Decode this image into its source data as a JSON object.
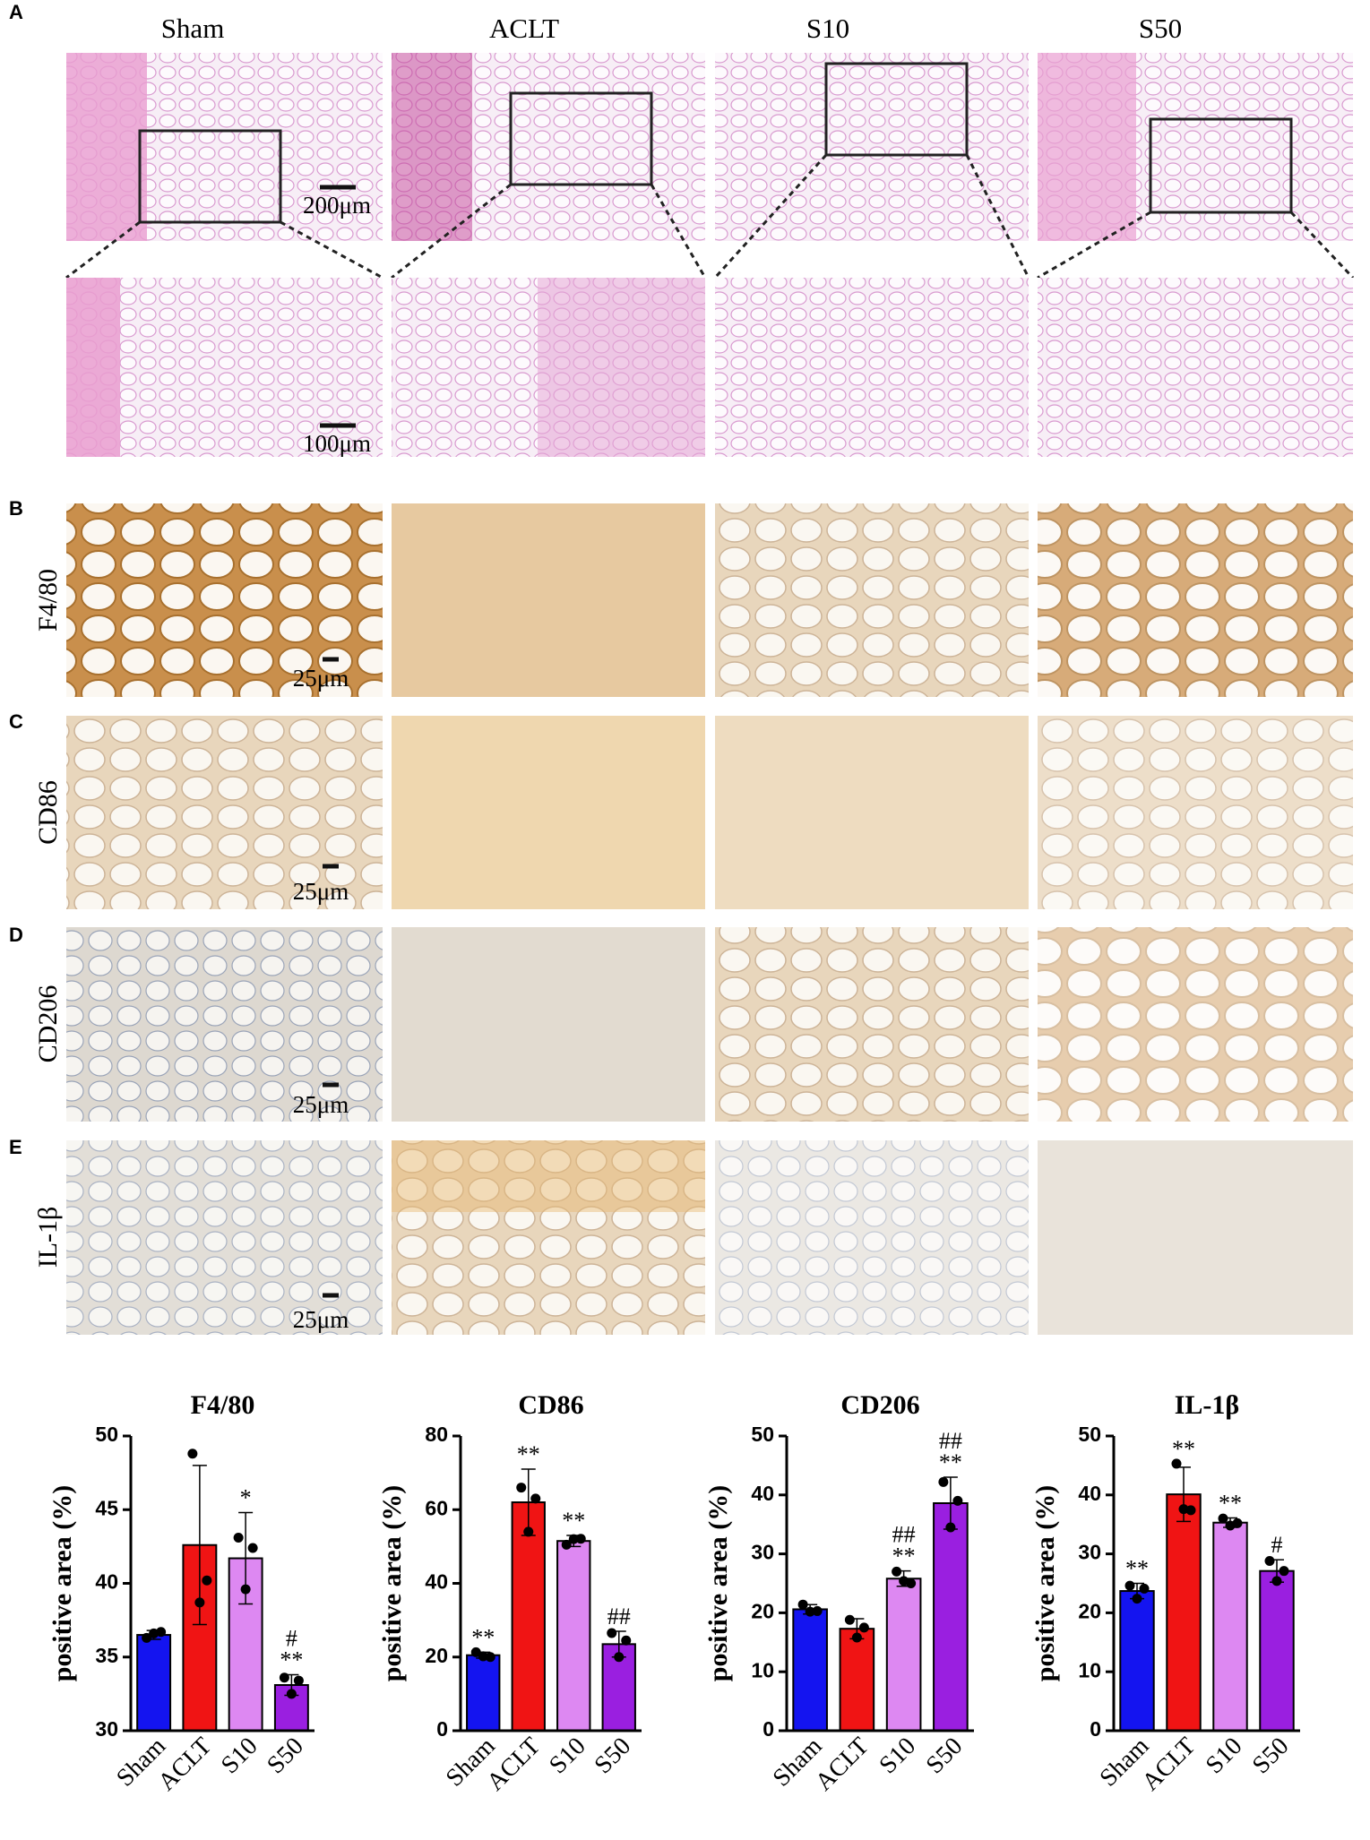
{
  "panel_labels": [
    "A",
    "B",
    "C",
    "D",
    "E"
  ],
  "groups": [
    "Sham",
    "ACLT",
    "S10",
    "S50"
  ],
  "row_labels": [
    "F4/80",
    "CD86",
    "CD206",
    "IL-1β"
  ],
  "scale_bars": [
    "200μm",
    "100μm",
    "25μm",
    "25μm",
    "25μm",
    "25μm"
  ],
  "chart_data": [
    {
      "type": "bar",
      "title": "F4/80",
      "y_label": "positive area (%)",
      "categories": [
        "Sham",
        "ACLT",
        "S10",
        "S50"
      ],
      "colors": [
        "#1414f0",
        "#f01414",
        "#dd88f2",
        "#9a1fe0"
      ],
      "values": [
        36.5,
        42.6,
        41.7,
        33.1
      ],
      "errors": [
        0.3,
        5.4,
        3.1,
        0.7
      ],
      "points": [
        [
          36.3,
          36.6,
          36.7
        ],
        [
          48.8,
          38.7,
          40.2
        ],
        [
          43.1,
          39.6,
          42.4
        ],
        [
          33.6,
          32.5,
          33.4
        ]
      ],
      "annotations": [
        [],
        [],
        [
          "*"
        ],
        [
          "#",
          "**"
        ]
      ],
      "ylim": [
        30,
        50
      ],
      "yticks": [
        30,
        35,
        40,
        45,
        50
      ]
    },
    {
      "type": "bar",
      "title": "CD86",
      "y_label": "positive area (%)",
      "categories": [
        "Sham",
        "ACLT",
        "S10",
        "S50"
      ],
      "colors": [
        "#1414f0",
        "#f01414",
        "#dd88f2",
        "#9a1fe0"
      ],
      "values": [
        20.5,
        62,
        51.5,
        23.5
      ],
      "errors": [
        0.8,
        9,
        1.5,
        3.5
      ],
      "points": [
        [
          21.3,
          20.2,
          20.0
        ],
        [
          66,
          54,
          63
        ],
        [
          50.5,
          52.0,
          52.1
        ],
        [
          26.5,
          20.0,
          24.5
        ]
      ],
      "annotations": [
        [
          "**"
        ],
        [
          "**"
        ],
        [
          "**"
        ],
        [
          "##"
        ]
      ],
      "ylim": [
        0,
        80
      ],
      "yticks": [
        0,
        20,
        40,
        60,
        80
      ]
    },
    {
      "type": "bar",
      "title": "CD206",
      "y_label": "positive area (%)",
      "categories": [
        "Sham",
        "ACLT",
        "S10",
        "S50"
      ],
      "colors": [
        "#1414f0",
        "#f01414",
        "#dd88f2",
        "#9a1fe0"
      ],
      "values": [
        20.6,
        17.3,
        25.8,
        38.6
      ],
      "errors": [
        0.8,
        1.7,
        1.3,
        4.4
      ],
      "points": [
        [
          21.4,
          20.2,
          20.3
        ],
        [
          18.8,
          15.8,
          17.5
        ],
        [
          27.0,
          25.4,
          25.0
        ],
        [
          42.2,
          34.5,
          39.0
        ]
      ],
      "annotations": [
        [],
        [],
        [
          "##",
          "**"
        ],
        [
          "##",
          "**"
        ]
      ],
      "ylim": [
        0,
        50
      ],
      "yticks": [
        0,
        10,
        20,
        30,
        40,
        50
      ]
    },
    {
      "type": "bar",
      "title": "IL-1β",
      "y_label": "positive area (%)",
      "categories": [
        "Sham",
        "ACLT",
        "S10",
        "S50"
      ],
      "colors": [
        "#1414f0",
        "#f01414",
        "#dd88f2",
        "#9a1fe0"
      ],
      "values": [
        23.7,
        40.1,
        35.3,
        27.1
      ],
      "errors": [
        1.3,
        4.6,
        0.8,
        1.9
      ],
      "points": [
        [
          24.6,
          22.4,
          24.1
        ],
        [
          45.3,
          37.6,
          37.4
        ],
        [
          36.0,
          34.8,
          35.2
        ],
        [
          28.8,
          25.4,
          27.1
        ]
      ],
      "annotations": [
        [
          "**"
        ],
        [
          "**"
        ],
        [
          "**"
        ],
        [
          "#"
        ]
      ],
      "ylim": [
        0,
        50
      ],
      "yticks": [
        0,
        10,
        20,
        30,
        40,
        50
      ]
    }
  ]
}
